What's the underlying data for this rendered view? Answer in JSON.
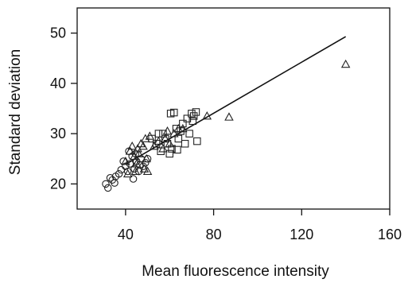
{
  "chart_data": {
    "type": "scatter",
    "xlabel": "Mean fluorescence intensity",
    "ylabel": "Standard deviation",
    "xlim": [
      18,
      160
    ],
    "ylim": [
      15,
      55
    ],
    "xticks": [
      "40",
      "80",
      "120",
      "160"
    ],
    "yticks": [
      "20",
      "30",
      "40",
      "50"
    ],
    "xtick_values": [
      40,
      80,
      120,
      160
    ],
    "ytick_values": [
      20,
      30,
      40,
      50
    ],
    "grid": false,
    "legend": "none",
    "fit_line": {
      "x": [
        40,
        140
      ],
      "y": [
        23.9,
        49.3
      ]
    },
    "series": [
      {
        "marker": "circle",
        "points": [
          [
            31,
            20
          ],
          [
            32,
            19.2
          ],
          [
            33,
            21.2
          ],
          [
            34,
            20.8
          ],
          [
            35,
            20.2
          ],
          [
            35.5,
            21.5
          ],
          [
            37,
            22
          ],
          [
            38,
            22.8
          ],
          [
            39,
            24.5
          ],
          [
            40,
            23.5
          ],
          [
            41,
            22.5
          ],
          [
            42,
            24
          ],
          [
            43,
            25.5
          ],
          [
            43.5,
            21
          ],
          [
            44,
            23
          ],
          [
            45,
            24.5
          ],
          [
            46,
            22.5
          ],
          [
            47,
            25
          ],
          [
            48,
            23.5
          ],
          [
            49,
            24.2
          ],
          [
            50,
            25
          ],
          [
            41.5,
            26.5
          ],
          [
            44.5,
            26
          ],
          [
            46.5,
            23.8
          ]
        ]
      },
      {
        "marker": "triangle",
        "points": [
          [
            40,
            24.5
          ],
          [
            41,
            22
          ],
          [
            42,
            26.5
          ],
          [
            43,
            27.5
          ],
          [
            44,
            25.5
          ],
          [
            44.5,
            22.5
          ],
          [
            45,
            24
          ],
          [
            45.5,
            27
          ],
          [
            46,
            26
          ],
          [
            47,
            28
          ],
          [
            48,
            27.5
          ],
          [
            48.5,
            23
          ],
          [
            49,
            29
          ],
          [
            49.5,
            25
          ],
          [
            50,
            22.5
          ],
          [
            51,
            29.5
          ],
          [
            53,
            27.5
          ],
          [
            55,
            28.5
          ],
          [
            57,
            27
          ],
          [
            58,
            29
          ],
          [
            59,
            30.5
          ],
          [
            60,
            28
          ],
          [
            62,
            30
          ],
          [
            64,
            31
          ],
          [
            66,
            31
          ],
          [
            77,
            33.5
          ],
          [
            87,
            33.3
          ],
          [
            140,
            43.8
          ]
        ]
      },
      {
        "marker": "square",
        "points": [
          [
            52,
            29
          ],
          [
            54,
            28
          ],
          [
            55,
            30
          ],
          [
            56,
            26.5
          ],
          [
            57,
            30
          ],
          [
            58,
            29
          ],
          [
            59,
            28
          ],
          [
            60,
            26
          ],
          [
            60.5,
            34
          ],
          [
            61,
            27
          ],
          [
            62,
            34.2
          ],
          [
            63,
            31
          ],
          [
            63.5,
            26.8
          ],
          [
            64,
            29
          ],
          [
            65,
            30.5
          ],
          [
            66,
            32
          ],
          [
            67,
            28
          ],
          [
            68,
            33
          ],
          [
            69,
            30
          ],
          [
            70,
            34
          ],
          [
            70.5,
            32.5
          ],
          [
            71,
            33.5
          ],
          [
            72,
            34.3
          ],
          [
            72.5,
            28.5
          ]
        ]
      }
    ]
  }
}
